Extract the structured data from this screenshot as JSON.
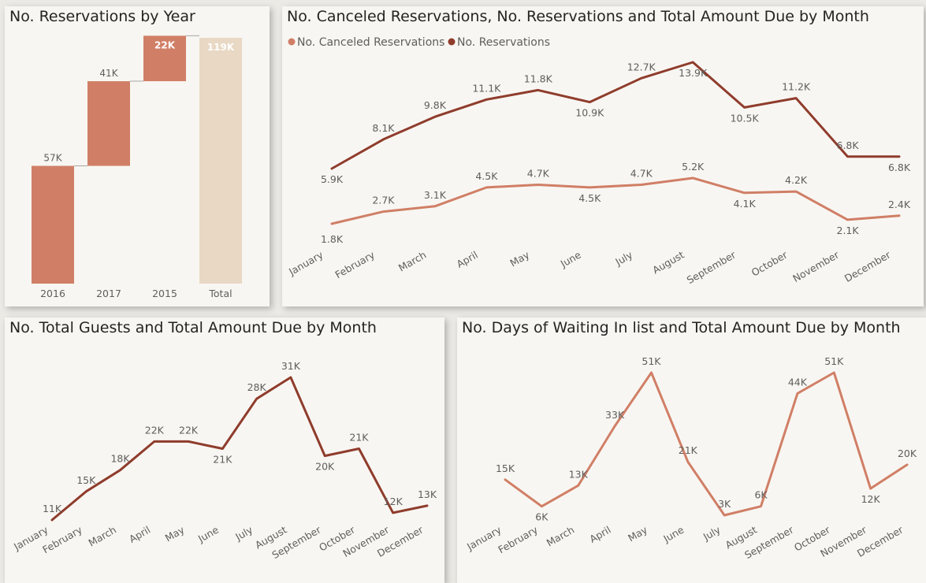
{
  "panels": {
    "p1": {
      "title": "No. Reservations by Year"
    },
    "p2": {
      "title": "No. Canceled Reservations, No. Reservations and Total Amount Due by Month"
    },
    "p3": {
      "title": "No. Total Guests and Total Amount Due by Month"
    },
    "p4": {
      "title": "No. Days of Waiting In list and Total Amount Due by Month"
    }
  },
  "colors": {
    "bar": "#d07f66",
    "total": "#e8d8c4",
    "reservations": "#8f3c2c",
    "canceled": "#d07f66",
    "guests": "#8f3c2c",
    "waiting": "#d07f66",
    "label": "#605e5c"
  },
  "chart_data": [
    {
      "type": "waterfall",
      "title": "No. Reservations by Year",
      "categories": [
        "2016",
        "2017",
        "2015",
        "Total"
      ],
      "values": [
        57,
        41,
        22,
        119
      ],
      "labels": [
        "57K",
        "41K",
        "22K",
        "119K"
      ],
      "ylim": [
        0,
        119
      ]
    },
    {
      "type": "line",
      "title": "No. Canceled Reservations, No. Reservations and Total Amount Due by Month",
      "legend_position": "top-left",
      "categories": [
        "January",
        "February",
        "March",
        "April",
        "May",
        "June",
        "July",
        "August",
        "September",
        "October",
        "November",
        "December"
      ],
      "series": [
        {
          "name": "No. Canceled Reservations",
          "color": "#d07f66",
          "values": [
            1.8,
            2.7,
            3.1,
            4.5,
            4.7,
            4.5,
            4.7,
            5.2,
            4.1,
            4.2,
            2.1,
            2.4
          ],
          "labels": [
            "1.8K",
            "2.7K",
            "3.1K",
            "4.5K",
            "4.7K",
            "4.5K",
            "4.7K",
            "5.2K",
            "4.1K",
            "4.2K",
            "2.1K",
            "2.4K"
          ]
        },
        {
          "name": "No. Reservations",
          "color": "#8f3c2c",
          "values": [
            5.9,
            8.1,
            9.8,
            11.1,
            11.8,
            10.9,
            12.7,
            13.9,
            10.5,
            11.2,
            6.8,
            6.8
          ],
          "labels": [
            "5.9K",
            "8.1K",
            "9.8K",
            "11.1K",
            "11.8K",
            "10.9K",
            "12.7K",
            "13.9K",
            "10.5K",
            "11.2K",
            "6.8K",
            "6.8K"
          ]
        }
      ]
    },
    {
      "type": "line",
      "title": "No. Total Guests and Total Amount Due by Month",
      "categories": [
        "January",
        "February",
        "March",
        "April",
        "May",
        "June",
        "July",
        "August",
        "September",
        "October",
        "November",
        "December"
      ],
      "series": [
        {
          "color": "#8f3c2c",
          "values": [
            11,
            15,
            18,
            22,
            22,
            21,
            28,
            31,
            20,
            21,
            12,
            13
          ],
          "labels": [
            "11K",
            "15K",
            "18K",
            "22K",
            "22K",
            "21K",
            "28K",
            "31K",
            "20K",
            "21K",
            "12K",
            "13K"
          ]
        }
      ]
    },
    {
      "type": "line",
      "title": "No. Days of Waiting In list and Total Amount Due by Month",
      "categories": [
        "January",
        "February",
        "March",
        "April",
        "May",
        "June",
        "July",
        "August",
        "September",
        "October",
        "November",
        "December"
      ],
      "series": [
        {
          "color": "#d07f66",
          "values": [
            15,
            6,
            13,
            33,
            51,
            21,
            3,
            6,
            44,
            51,
            12,
            20
          ],
          "labels": [
            "15K",
            "6K",
            "13K",
            "33K",
            "51K",
            "21K",
            "3K",
            "6K",
            "44K",
            "51K",
            "12K",
            "20K"
          ]
        }
      ]
    }
  ]
}
